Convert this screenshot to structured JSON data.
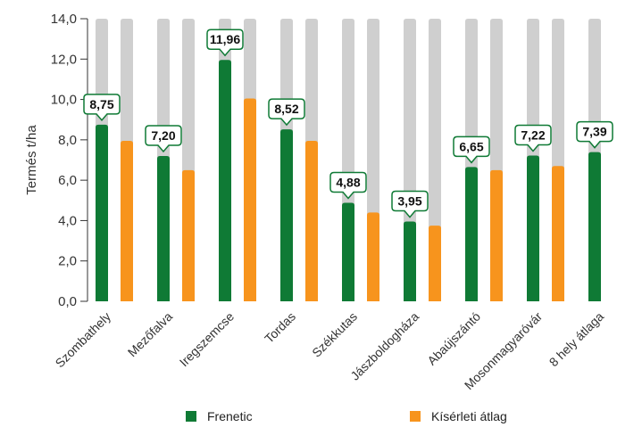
{
  "chart_data": {
    "type": "bar",
    "ylabel": "Termés t/ha",
    "ylim": [
      0,
      14
    ],
    "yticks": [
      "0,0",
      "2,0",
      "4,0",
      "6,0",
      "8,0",
      "10,0",
      "12,0",
      "14,0"
    ],
    "categories": [
      "Szombathely",
      "Mezőfalva",
      "Iregszemcse",
      "Tordas",
      "Székkutas",
      "Jászboldogháza",
      "Abaújszántó",
      "Mosonmagyaróvár",
      "8 hely átlaga"
    ],
    "series": [
      {
        "name": "Frenetic",
        "color": "#0f7a35",
        "values": [
          8.75,
          7.2,
          11.96,
          8.52,
          4.88,
          3.95,
          6.65,
          7.22,
          7.39
        ],
        "labels": [
          "8,75",
          "7,20",
          "11,96",
          "8,52",
          "4,88",
          "3,95",
          "6,65",
          "7,22",
          "7,39"
        ]
      },
      {
        "name": "Kísérleti átlag",
        "color": "#f7941d",
        "values": [
          7.95,
          6.5,
          10.05,
          7.95,
          4.4,
          3.75,
          6.5,
          6.7,
          6.7
        ]
      }
    ],
    "background_color": "#cfcfcf",
    "grid": false,
    "legend_position": "bottom"
  },
  "legend": {
    "items": [
      {
        "label": "Frenetic",
        "color": "#0f7a35"
      },
      {
        "label": "Kísérleti átlag",
        "color": "#f7941d"
      }
    ]
  }
}
